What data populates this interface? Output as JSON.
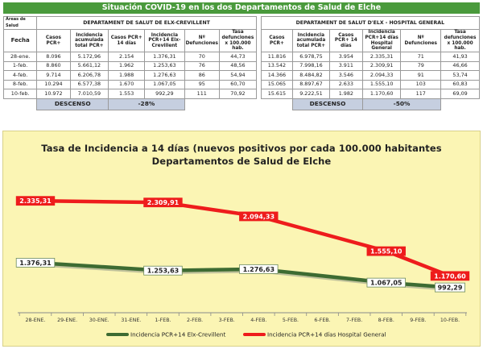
{
  "banner": "Situación COVID-19 en los dos Departamentos de Salud de Elche",
  "table": {
    "areas_label": "Áreas de Salud",
    "dept1_name": "DEPARTAMENT DE SALUT DE ELX-CREVILLENT",
    "dept2_name": "DEPARTAMENT DE SALUT D'ELX - HOSPITAL GENERAL",
    "headers": {
      "fecha": "Fecha",
      "casos": "Casos PCR+",
      "incid_acum": "Incidencia acumulada total PCR+",
      "casos14": "Casos PCR+ 14 días",
      "incid14_d1": "Incidencia PCR+14 Elx-Crevillent",
      "incid14_d2": "Incidencia PCR+14 días Hospital General",
      "defunc": "Nº Defunciones",
      "tasa_def": "Tasa defunciones x 100.000 hab."
    },
    "rows": [
      {
        "fecha": "28-ene.",
        "d1": [
          "8.096",
          "5.172,96",
          "2.154",
          "1.376,31",
          "70",
          "44,73"
        ],
        "d2": [
          "11.816",
          "6.978,75",
          "3.954",
          "2.335,31",
          "71",
          "41,93"
        ]
      },
      {
        "fecha": "1-feb.",
        "d1": [
          "8.860",
          "5.661,12",
          "1.962",
          "1.253,63",
          "76",
          "48,56"
        ],
        "d2": [
          "13.542",
          "7.998,16",
          "3.911",
          "2.309,91",
          "79",
          "46,66"
        ]
      },
      {
        "fecha": "4-feb.",
        "d1": [
          "9.714",
          "6.206,78",
          "1.988",
          "1.276,63",
          "86",
          "54,94"
        ],
        "d2": [
          "14.366",
          "8.484,82",
          "3.546",
          "2.094,33",
          "91",
          "53,74"
        ]
      },
      {
        "fecha": "8-feb.",
        "d1": [
          "10.294",
          "6.577,38",
          "1.670",
          "1.067,05",
          "95",
          "60,70"
        ],
        "d2": [
          "15.065",
          "8.897,67",
          "2.633",
          "1.555,10",
          "103",
          "60,83"
        ]
      },
      {
        "fecha": "10-feb.",
        "d1": [
          "10.972",
          "7.010,59",
          "1.553",
          "992,29",
          "111",
          "70,92"
        ],
        "d2": [
          "15.615",
          "9.222,51",
          "1.982",
          "1.170,60",
          "117",
          "69,09"
        ]
      }
    ],
    "descenso": {
      "label": "DESCENSO",
      "d1_value": "-28%",
      "d2_value": "-50%"
    }
  },
  "chart_data": {
    "type": "line",
    "title_line1": "Tasa de Incidencia a 14 días (nuevos positivos por cada 100.000 habitantes",
    "title_line2": "Departamentos de Salud de Elche",
    "categories": [
      "28-ENE.",
      "29-ENE.",
      "30-ENE.",
      "31-ENE.",
      "1-FEB.",
      "2-FEB.",
      "3-FEB.",
      "4-FEB.",
      "5-FEB.",
      "6-FEB.",
      "7-FEB.",
      "8-FEB.",
      "9-FEB.",
      "10-FEB."
    ],
    "series": [
      {
        "name": "Incidencia PCR+14 Elx-Crevillent",
        "color": "#3d6b32",
        "points": [
          {
            "x": "28-ENE.",
            "y": 1376.31,
            "label": "1.376,31"
          },
          {
            "x": "1-FEB.",
            "y": 1253.63,
            "label": "1.253,63"
          },
          {
            "x": "4-FEB.",
            "y": 1276.63,
            "label": "1.276,63"
          },
          {
            "x": "8-FEB.",
            "y": 1067.05,
            "label": "1.067,05"
          },
          {
            "x": "10-FEB.",
            "y": 992.29,
            "label": "992,29"
          }
        ]
      },
      {
        "name": "Incidencia PCR+14 días Hospital General",
        "color": "#ee1c1c",
        "points": [
          {
            "x": "28-ENE.",
            "y": 2335.31,
            "label": "2.335,31"
          },
          {
            "x": "1-FEB.",
            "y": 2309.91,
            "label": "2.309,91"
          },
          {
            "x": "4-FEB.",
            "y": 2094.33,
            "label": "2.094,33"
          },
          {
            "x": "8-FEB.",
            "y": 1555.1,
            "label": "1.555,10"
          },
          {
            "x": "10-FEB.",
            "y": 1170.6,
            "label": "1.170,60"
          }
        ]
      }
    ],
    "ylim": [
      600,
      2600
    ],
    "grid": false,
    "legend_position": "bottom"
  }
}
